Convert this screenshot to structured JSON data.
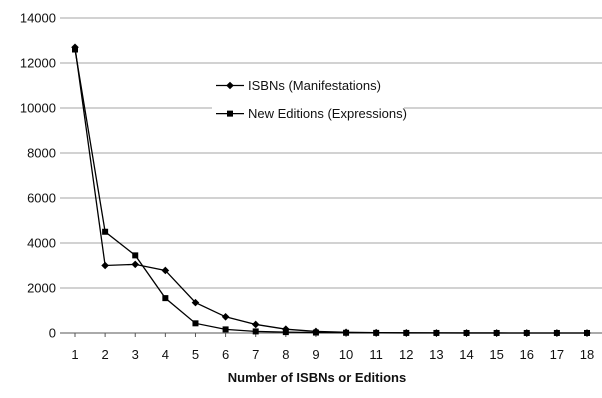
{
  "chart_data": {
    "type": "line",
    "title": "",
    "xlabel": "Number of ISBNs or Editions",
    "ylabel": "",
    "x": [
      1,
      2,
      3,
      4,
      5,
      6,
      7,
      8,
      9,
      10,
      11,
      12,
      13,
      14,
      15,
      16,
      17,
      18
    ],
    "ylim": [
      0,
      14000
    ],
    "yticks": [
      0,
      2000,
      4000,
      6000,
      8000,
      10000,
      12000,
      14000
    ],
    "grid": true,
    "legend_position": "upper-middle",
    "series": [
      {
        "name": "ISBNs (Manifestations)",
        "marker": "diamond",
        "color": "#000000",
        "values": [
          12700,
          3000,
          3050,
          2780,
          1350,
          720,
          380,
          170,
          70,
          30,
          15,
          8,
          5,
          3,
          2,
          1,
          1,
          1
        ]
      },
      {
        "name": "New Editions (Expressions)",
        "marker": "square",
        "color": "#000000",
        "values": [
          12600,
          4500,
          3450,
          1550,
          430,
          160,
          70,
          40,
          20,
          10,
          5,
          3,
          2,
          1,
          1,
          1,
          1,
          1
        ]
      }
    ]
  }
}
